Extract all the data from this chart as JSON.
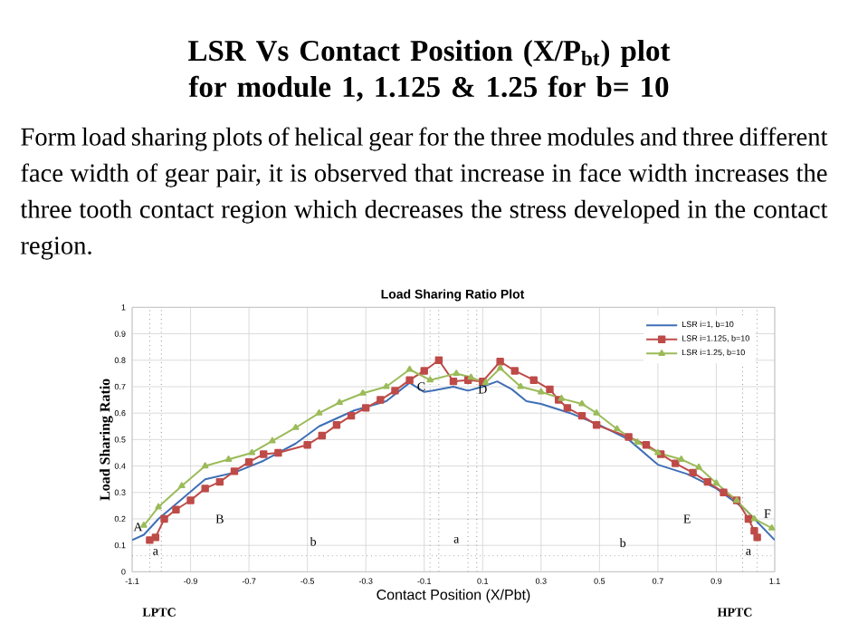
{
  "chart_data": {
    "type": "line",
    "title": "LSR Vs Contact Position (X/P$_{bt}$) plot for module 1, 1.125 & 1.25 for b= 10",
    "subtitle": "Load Sharing Ratio Plot",
    "xlabel": "Contact Position (X/Pbt)",
    "ylabel": "Load Sharing Ratio",
    "xlim": [
      -1.1,
      1.1
    ],
    "ylim": [
      0,
      1
    ],
    "xticks": [
      -1.1,
      -0.9,
      -0.7,
      -0.5,
      -0.3,
      -0.1,
      0.1,
      0.3,
      0.5,
      0.7,
      0.9,
      1.1
    ],
    "yticks": [
      0,
      0.1,
      0.2,
      0.3,
      0.4,
      0.5,
      0.6,
      0.7,
      0.8,
      0.9,
      1
    ],
    "grid": true,
    "legend": "top right",
    "series": [
      {
        "name": "LSR i=1, b=10",
        "color": "#3f6fb5",
        "marker": "none",
        "x": [
          -1.1,
          -1.06,
          -1.01,
          -0.85,
          -0.75,
          -0.65,
          -0.54,
          -0.46,
          -0.34,
          -0.23,
          -0.15,
          -0.1,
          -0.07,
          0,
          0.05,
          0.1,
          0.15,
          0.2,
          0.25,
          0.3,
          0.4,
          0.5,
          0.6,
          0.7,
          0.8,
          0.9,
          1.0,
          1.1
        ],
        "values": [
          0.12,
          0.14,
          0.2,
          0.35,
          0.375,
          0.42,
          0.485,
          0.55,
          0.61,
          0.645,
          0.715,
          0.68,
          0.685,
          0.7,
          0.685,
          0.7,
          0.72,
          0.69,
          0.645,
          0.635,
          0.6,
          0.555,
          0.5,
          0.405,
          0.37,
          0.315,
          0.235,
          0.12
        ]
      },
      {
        "name": "LSR i=1.125, b=10",
        "color": "#be4b48",
        "marker": "square",
        "x": [
          -1.04,
          -1.02,
          -0.99,
          -0.95,
          -0.9,
          -0.85,
          -0.8,
          -0.75,
          -0.7,
          -0.65,
          -0.6,
          -0.5,
          -0.45,
          -0.4,
          -0.35,
          -0.3,
          -0.25,
          -0.2,
          -0.15,
          -0.1,
          -0.05,
          0.0,
          0.05,
          0.1,
          0.16,
          0.21,
          0.275,
          0.33,
          0.36,
          0.39,
          0.44,
          0.49,
          0.6,
          0.66,
          0.71,
          0.76,
          0.82,
          0.87,
          0.925,
          0.97,
          1.01,
          1.03,
          1.04
        ],
        "values": [
          0.12,
          0.13,
          0.2,
          0.235,
          0.27,
          0.315,
          0.34,
          0.38,
          0.415,
          0.445,
          0.45,
          0.48,
          0.515,
          0.555,
          0.59,
          0.62,
          0.65,
          0.685,
          0.725,
          0.76,
          0.8,
          0.72,
          0.725,
          0.72,
          0.795,
          0.76,
          0.725,
          0.69,
          0.65,
          0.62,
          0.59,
          0.555,
          0.51,
          0.48,
          0.445,
          0.41,
          0.375,
          0.34,
          0.3,
          0.27,
          0.2,
          0.155,
          0.13
        ]
      },
      {
        "name": "LSR i=1.25, b=10",
        "color": "#9bbb59",
        "marker": "triangle",
        "x": [
          -1.06,
          -1.01,
          -0.93,
          -0.85,
          -0.77,
          -0.69,
          -0.62,
          -0.54,
          -0.46,
          -0.39,
          -0.31,
          -0.23,
          -0.15,
          -0.08,
          0.01,
          0.06,
          0.11,
          0.16,
          0.23,
          0.3,
          0.37,
          0.44,
          0.49,
          0.56,
          0.63,
          0.7,
          0.78,
          0.84,
          0.9,
          0.97,
          1.03,
          1.09
        ],
        "values": [
          0.175,
          0.245,
          0.325,
          0.4,
          0.425,
          0.45,
          0.495,
          0.545,
          0.6,
          0.64,
          0.675,
          0.7,
          0.765,
          0.725,
          0.75,
          0.735,
          0.715,
          0.77,
          0.7,
          0.68,
          0.655,
          0.635,
          0.6,
          0.54,
          0.49,
          0.45,
          0.425,
          0.395,
          0.335,
          0.27,
          0.2,
          0.165
        ]
      }
    ],
    "ref_lines": [
      {
        "axis": "y",
        "value": 0.06,
        "line_style": "dotted",
        "color": "#555555"
      },
      {
        "axis": "x",
        "value": -1.04,
        "line_style": "dotted",
        "color": "#555555"
      },
      {
        "axis": "x",
        "value": -1.0,
        "line_style": "dotted",
        "color": "#555555"
      },
      {
        "axis": "x",
        "value": -0.08,
        "line_style": "dotted",
        "color": "#555555"
      },
      {
        "axis": "x",
        "value": -0.05,
        "line_style": "dotted",
        "color": "#555555"
      },
      {
        "axis": "x",
        "value": 0.05,
        "line_style": "dotted",
        "color": "#555555"
      },
      {
        "axis": "x",
        "value": 0.08,
        "line_style": "dotted",
        "color": "#555555"
      },
      {
        "axis": "x",
        "value": 0.99,
        "line_style": "dotted",
        "color": "#555555"
      },
      {
        "axis": "x",
        "value": 1.04,
        "line_style": "dotted",
        "color": "#555555"
      }
    ],
    "annotations": [
      "Form load sharing plots of helical gear for the three modules and three different face width of gear pair, it is observed that increase in face width increases the three tooth contact region which decreases the stress developed in the contact region.",
      "LPTC",
      "HPTC",
      {
        "text": "A",
        "x": -1.08,
        "y": 0.17
      },
      "B",
      "E",
      "F",
      "b",
      "a",
      "b",
      {
        "text": "C",
        "x": -0.11,
        "y": 0.7
      },
      {
        "text": "D",
        "x": 0.1,
        "y": 0.69
      },
      {
        "text": "a",
        "x": -1.02,
        "y": 0.075
      },
      {
        "text": "a",
        "x": 1.01,
        "y": 0.075
      }
    ]
  }
}
